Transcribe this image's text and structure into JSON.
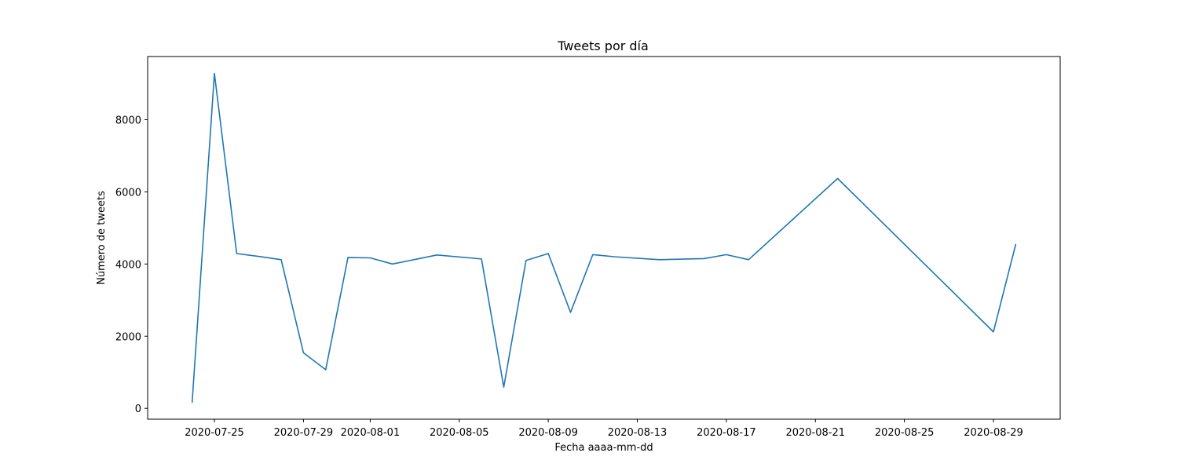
{
  "chart_data": {
    "type": "line",
    "title": "Tweets por día",
    "xlabel": "Fecha aaaa-mm-dd",
    "ylabel": "Número de tweets",
    "x_axis_kind": "date",
    "xlim": [
      "2020-07-22",
      "2020-09-01"
    ],
    "ylim": [
      -300,
      9750
    ],
    "x_ticks": [
      "2020-07-25",
      "2020-07-29",
      "2020-08-01",
      "2020-08-05",
      "2020-08-09",
      "2020-08-13",
      "2020-08-17",
      "2020-08-21",
      "2020-08-25",
      "2020-08-29"
    ],
    "y_ticks": [
      0,
      2000,
      4000,
      6000,
      8000
    ],
    "grid": false,
    "color": "#1f77b4",
    "series": [
      {
        "points": [
          {
            "x": "2020-07-24",
            "y": 170
          },
          {
            "x": "2020-07-25",
            "y": 9280
          },
          {
            "x": "2020-07-26",
            "y": 4290
          },
          {
            "x": "2020-07-27",
            "y": 4210
          },
          {
            "x": "2020-07-28",
            "y": 4120
          },
          {
            "x": "2020-07-29",
            "y": 1540
          },
          {
            "x": "2020-07-30",
            "y": 1070
          },
          {
            "x": "2020-07-31",
            "y": 4180
          },
          {
            "x": "2020-08-01",
            "y": 4170
          },
          {
            "x": "2020-08-02",
            "y": 4000
          },
          {
            "x": "2020-08-04",
            "y": 4250
          },
          {
            "x": "2020-08-06",
            "y": 4140
          },
          {
            "x": "2020-08-07",
            "y": 590
          },
          {
            "x": "2020-08-08",
            "y": 4100
          },
          {
            "x": "2020-08-09",
            "y": 4290
          },
          {
            "x": "2020-08-10",
            "y": 2660
          },
          {
            "x": "2020-08-11",
            "y": 4260
          },
          {
            "x": "2020-08-12",
            "y": 4200
          },
          {
            "x": "2020-08-14",
            "y": 4120
          },
          {
            "x": "2020-08-16",
            "y": 4150
          },
          {
            "x": "2020-08-17",
            "y": 4260
          },
          {
            "x": "2020-08-18",
            "y": 4120
          },
          {
            "x": "2020-08-22",
            "y": 6370
          },
          {
            "x": "2020-08-29",
            "y": 2120
          },
          {
            "x": "2020-08-30",
            "y": 4540
          }
        ]
      }
    ]
  }
}
